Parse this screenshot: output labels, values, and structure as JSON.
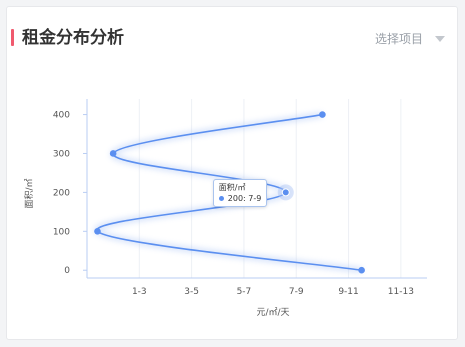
{
  "header": {
    "title": "租金分布分析",
    "selector_label": "选择项目",
    "accent_color": "#f05a6e"
  },
  "chart_data": {
    "type": "line",
    "xlabel": "元/㎡/天",
    "ylabel": "面积/㎡",
    "x_categories": [
      "1-3",
      "3-5",
      "5-7",
      "7-9",
      "9-11",
      "11-13"
    ],
    "y_ticks": [
      0,
      100,
      200,
      300,
      400
    ],
    "ylim": [
      -20,
      440
    ],
    "grid": "vertical",
    "line_color": "#5b8ff0",
    "smooth": true,
    "points": [
      {
        "x": 10.5,
        "y": 0
      },
      {
        "x": 0.4,
        "y": 100
      },
      {
        "x": 7.6,
        "y": 200
      },
      {
        "x": 1.0,
        "y": 300
      },
      {
        "x": 9.0,
        "y": 400
      }
    ],
    "tooltip": {
      "title": "面积/㎡",
      "value": "200: 7-9",
      "index": 2
    }
  }
}
